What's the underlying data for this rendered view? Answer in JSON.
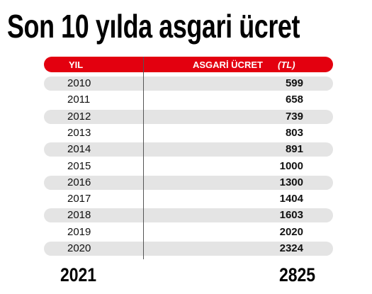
{
  "title": "Son 10 yılda asgari ücret",
  "table": {
    "header": {
      "year": "YIL",
      "wage": "ASGARİ ÜCRET",
      "unit": "(TL)"
    },
    "rows": [
      [
        "2010",
        "599"
      ],
      [
        "2011",
        "658"
      ],
      [
        "2012",
        "739"
      ],
      [
        "2013",
        "803"
      ],
      [
        "2014",
        "891"
      ],
      [
        "2015",
        "1000"
      ],
      [
        "2016",
        "1300"
      ],
      [
        "2017",
        "1404"
      ],
      [
        "2018",
        "1603"
      ],
      [
        "2019",
        "2020"
      ],
      [
        "2020",
        "2324"
      ]
    ],
    "highlight": [
      "2021",
      "2825"
    ]
  }
}
